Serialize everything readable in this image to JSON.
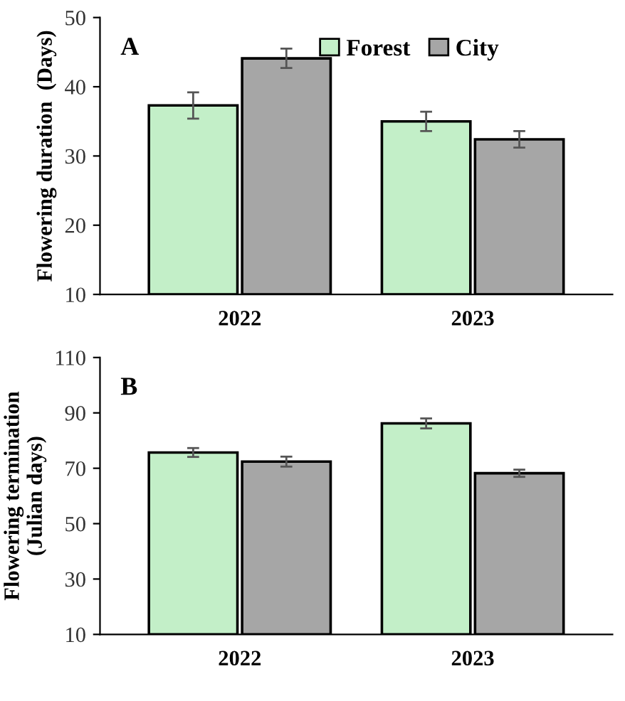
{
  "chart_data": [
    {
      "type": "bar",
      "ylabel": "Flowering duration  (Days)",
      "annotations": [
        "A"
      ],
      "categories": [
        "2022",
        "2023"
      ],
      "ylim": [
        10,
        50
      ],
      "yticks": [
        10,
        20,
        30,
        40,
        50
      ],
      "grid": false,
      "legend": "top right",
      "series": [
        {
          "name": "Forest",
          "color": "#c3efc8",
          "values": [
            37.3,
            35.0
          ],
          "errors": [
            1.9,
            1.4
          ]
        },
        {
          "name": "City",
          "color": "#a6a6a6",
          "values": [
            44.1,
            32.4
          ],
          "errors": [
            1.4,
            1.2
          ]
        }
      ]
    },
    {
      "type": "bar",
      "ylabel": "Flowering termination\n(Julian days)",
      "annotations": [
        "B"
      ],
      "categories": [
        "2022",
        "2023"
      ],
      "ylim": [
        10,
        110
      ],
      "yticks": [
        10,
        30,
        50,
        70,
        90,
        110
      ],
      "grid": false,
      "series": [
        {
          "color": "#c3efc8",
          "values": [
            75.7,
            86.2
          ],
          "errors": [
            1.6,
            1.8
          ]
        },
        {
          "color": "#a6a6a6",
          "values": [
            72.4,
            68.2
          ],
          "errors": [
            1.8,
            1.3
          ]
        }
      ]
    }
  ]
}
